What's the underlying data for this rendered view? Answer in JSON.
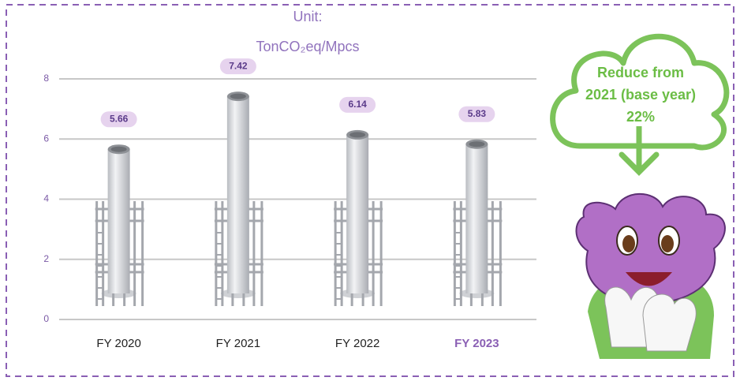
{
  "chart_data": {
    "type": "bar",
    "title": "Unit:",
    "unit": "TonCO₂eq/Mpcs",
    "categories": [
      "FY 2020",
      "FY 2021",
      "FY 2022",
      "FY 2023"
    ],
    "values": [
      5.66,
      7.42,
      6.14,
      5.83
    ],
    "ylim": [
      0,
      8
    ],
    "yticks": [
      0,
      2,
      4,
      6,
      8
    ],
    "grid": true,
    "color": "#d4d6da",
    "highlight_index": 3,
    "highlight_color": "#8a5fb4",
    "annotation": [
      "Reduce from",
      "2021 (base year)",
      "22%"
    ]
  }
}
